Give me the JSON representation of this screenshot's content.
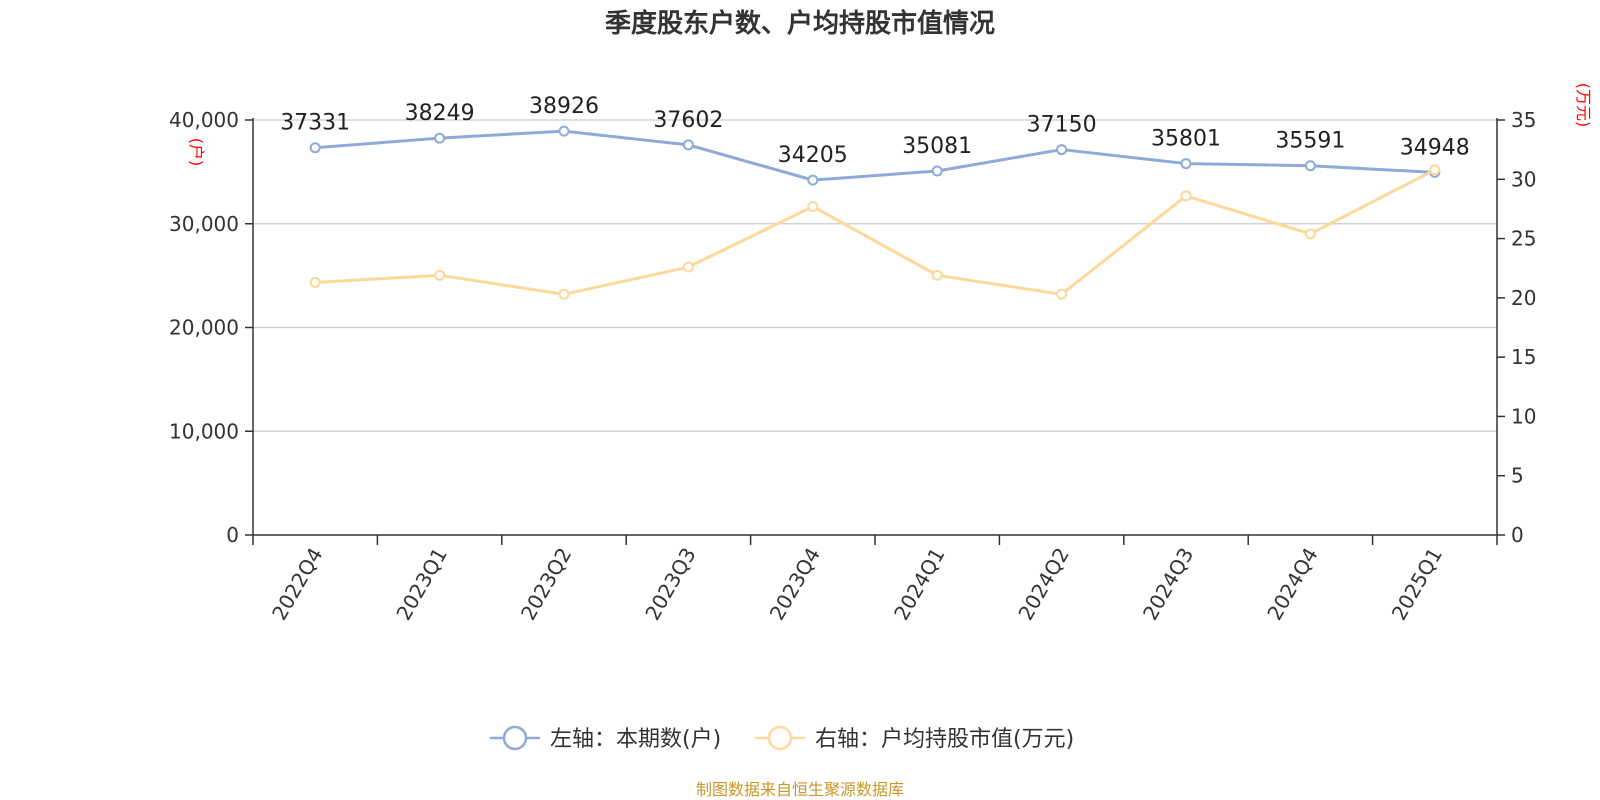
{
  "chart_data": {
    "type": "line",
    "title": "季度股东户数、户均持股市值情况",
    "categories": [
      "2022Q4",
      "2023Q1",
      "2023Q2",
      "2023Q3",
      "2023Q4",
      "2024Q1",
      "2024Q2",
      "2024Q3",
      "2024Q4",
      "2025Q1"
    ],
    "series": [
      {
        "name": "左轴：本期数(户)",
        "axis": "left",
        "color": "#8eaad8",
        "values": [
          37331,
          38249,
          38926,
          37602,
          34205,
          35081,
          37150,
          35801,
          35591,
          34948
        ],
        "labels": [
          "37331",
          "38249",
          "38926",
          "37602",
          "34205",
          "35081",
          "37150",
          "35801",
          "35591",
          "34948"
        ]
      },
      {
        "name": "右轴：户均持股市值(万元)",
        "axis": "right",
        "color": "#fcd89a",
        "values": [
          21.3,
          21.9,
          20.3,
          22.6,
          27.7,
          21.9,
          20.3,
          28.6,
          25.4,
          30.8
        ]
      }
    ],
    "y_left": {
      "unit": "(户)",
      "ylim": [
        0,
        40000
      ],
      "ticks": [
        "0",
        "10,000",
        "20,000",
        "30,000",
        "40,000"
      ],
      "tick_values": [
        0,
        10000,
        20000,
        30000,
        40000
      ]
    },
    "y_right": {
      "unit": "(万元)",
      "ylim": [
        0,
        35
      ],
      "ticks": [
        "0",
        "5",
        "10",
        "15",
        "20",
        "25",
        "30",
        "35"
      ],
      "tick_values": [
        0,
        5,
        10,
        15,
        20,
        25,
        30,
        35
      ]
    },
    "grid": true,
    "legend": "bottom-center"
  },
  "source": "制图数据来自恒生聚源数据库"
}
